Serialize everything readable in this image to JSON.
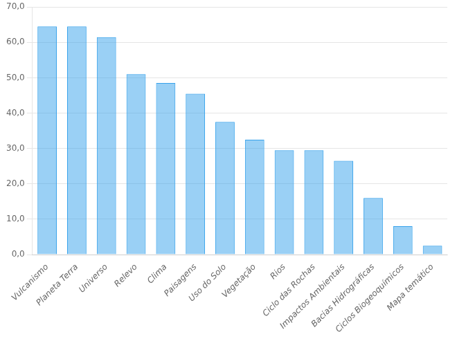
{
  "chart_data": {
    "type": "bar",
    "categories": [
      "Vulcanismo",
      "Planeta Terra",
      "Universo",
      "Relevo",
      "Clima",
      "Paisagens",
      "Uso do Solo",
      "Vegetação",
      "Rios",
      "Ciclo das Rochas",
      "Impactos Ambientais",
      "Bacias Hidrográficas",
      "Ciclos Biogeoquímicos",
      "Mapa temático"
    ],
    "values": [
      64.5,
      64.5,
      61.5,
      51.0,
      48.5,
      45.5,
      37.5,
      32.5,
      29.5,
      29.5,
      26.5,
      16.0,
      8.0,
      2.5
    ],
    "ylim": [
      0,
      70
    ],
    "yticks": [
      {
        "value": 0,
        "label": "0,0"
      },
      {
        "value": 10,
        "label": "10,0"
      },
      {
        "value": 20,
        "label": "20,0"
      },
      {
        "value": 30,
        "label": "30,0"
      },
      {
        "value": 40,
        "label": "40,0"
      },
      {
        "value": 50,
        "label": "50,0"
      },
      {
        "value": 60,
        "label": "60,0"
      },
      {
        "value": 70,
        "label": "70,0"
      }
    ],
    "grid": true
  }
}
